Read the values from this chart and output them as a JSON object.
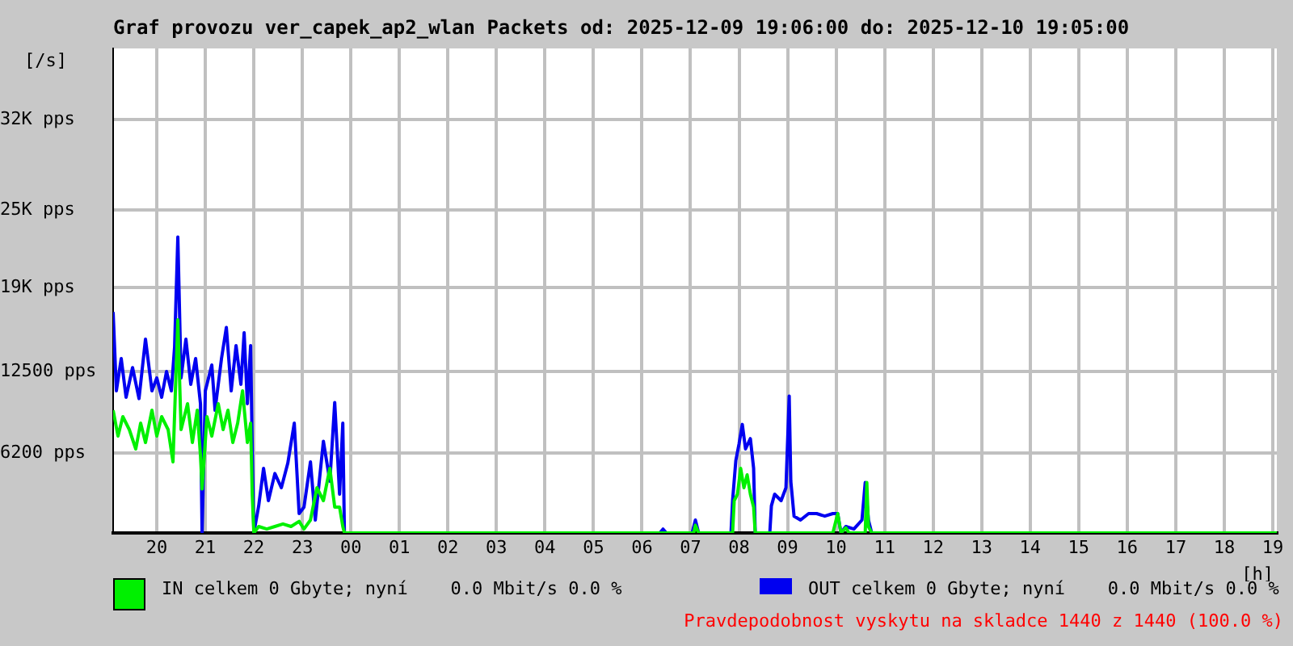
{
  "chart_data": {
    "type": "line",
    "title": "Graf provozu ver_capek_ap2_wlan Packets od: 2025-12-09 19:06:00 do: 2025-12-10 19:05:00",
    "ylabel": "[/s]",
    "xlabel": "[h]",
    "xlim": [
      "2025-12-09T19:06",
      "2025-12-10T19:05"
    ],
    "xticks": [
      {
        "value": "2025-12-09T20:00",
        "label": "20"
      },
      {
        "value": "2025-12-09T21:00",
        "label": "21"
      },
      {
        "value": "2025-12-09T22:00",
        "label": "22"
      },
      {
        "value": "2025-12-09T23:00",
        "label": "23"
      },
      {
        "value": "2025-12-10T00:00",
        "label": "00"
      },
      {
        "value": "2025-12-10T01:00",
        "label": "01"
      },
      {
        "value": "2025-12-10T02:00",
        "label": "02"
      },
      {
        "value": "2025-12-10T03:00",
        "label": "03"
      },
      {
        "value": "2025-12-10T04:00",
        "label": "04"
      },
      {
        "value": "2025-12-10T05:00",
        "label": "05"
      },
      {
        "value": "2025-12-10T06:00",
        "label": "06"
      },
      {
        "value": "2025-12-10T07:00",
        "label": "07"
      },
      {
        "value": "2025-12-10T08:00",
        "label": "08"
      },
      {
        "value": "2025-12-10T09:00",
        "label": "09"
      },
      {
        "value": "2025-12-10T10:00",
        "label": "10"
      },
      {
        "value": "2025-12-10T11:00",
        "label": "11"
      },
      {
        "value": "2025-12-10T12:00",
        "label": "12"
      },
      {
        "value": "2025-12-10T13:00",
        "label": "13"
      },
      {
        "value": "2025-12-10T14:00",
        "label": "14"
      },
      {
        "value": "2025-12-10T15:00",
        "label": "15"
      },
      {
        "value": "2025-12-10T16:00",
        "label": "16"
      },
      {
        "value": "2025-12-10T17:00",
        "label": "17"
      },
      {
        "value": "2025-12-10T18:00",
        "label": "18"
      },
      {
        "value": "2025-12-10T19:00",
        "label": "19"
      }
    ],
    "ylim": [
      0,
      37500
    ],
    "yticks": [
      {
        "value": 6200,
        "label": "6200 pps"
      },
      {
        "value": 12500,
        "label": "12500 pps"
      },
      {
        "value": 19000,
        "label": "19K pps"
      },
      {
        "value": 25000,
        "label": "25K pps"
      },
      {
        "value": 32000,
        "label": "32K pps"
      }
    ],
    "grid": true,
    "legend": "bottom",
    "series": [
      {
        "name": "IN celkem 0 Gbyte; nyní    0.0 Mbit/s 0.0 %",
        "color": "#00f000",
        "x": [
          "2025-12-09T19:06",
          "2025-12-09T19:12",
          "2025-12-09T19:18",
          "2025-12-09T19:26",
          "2025-12-09T19:34",
          "2025-12-09T19:40",
          "2025-12-09T19:46",
          "2025-12-09T19:54",
          "2025-12-09T20:00",
          "2025-12-09T20:06",
          "2025-12-09T20:14",
          "2025-12-09T20:20",
          "2025-12-09T20:26",
          "2025-12-09T20:30",
          "2025-12-09T20:38",
          "2025-12-09T20:44",
          "2025-12-09T20:50",
          "2025-12-09T20:54",
          "2025-12-09T20:56",
          "2025-12-09T21:02",
          "2025-12-09T21:08",
          "2025-12-09T21:16",
          "2025-12-09T21:22",
          "2025-12-09T21:28",
          "2025-12-09T21:34",
          "2025-12-09T21:40",
          "2025-12-09T21:46",
          "2025-12-09T21:52",
          "2025-12-09T21:56",
          "2025-12-09T21:58",
          "2025-12-09T22:00",
          "2025-12-09T22:06",
          "2025-12-09T22:16",
          "2025-12-09T22:26",
          "2025-12-09T22:36",
          "2025-12-09T22:46",
          "2025-12-09T22:56",
          "2025-12-09T23:02",
          "2025-12-09T23:10",
          "2025-12-09T23:18",
          "2025-12-09T23:26",
          "2025-12-09T23:34",
          "2025-12-09T23:40",
          "2025-12-09T23:46",
          "2025-12-09T23:50",
          "2025-12-09T23:52",
          "2025-12-10T07:04",
          "2025-12-10T07:06",
          "2025-12-10T07:10",
          "2025-12-10T07:52",
          "2025-12-10T07:54",
          "2025-12-10T07:58",
          "2025-12-10T08:02",
          "2025-12-10T08:06",
          "2025-12-10T08:10",
          "2025-12-10T08:14",
          "2025-12-10T08:18",
          "2025-12-10T08:20",
          "2025-12-10T09:56",
          "2025-12-10T10:02",
          "2025-12-10T10:06",
          "2025-12-10T10:12",
          "2025-12-10T10:16",
          "2025-12-10T10:36",
          "2025-12-10T10:38",
          "2025-12-10T10:40",
          "2025-12-10T10:44",
          "2025-12-10T19:05"
        ],
        "values": [
          9500,
          7500,
          9000,
          8000,
          6500,
          8500,
          7000,
          9500,
          7500,
          9000,
          8000,
          5500,
          16500,
          8000,
          10000,
          7000,
          9500,
          6000,
          3400,
          9000,
          7500,
          10000,
          8000,
          9500,
          7000,
          8500,
          11000,
          7000,
          8500,
          3000,
          0,
          500,
          300,
          500,
          700,
          500,
          900,
          300,
          1000,
          3500,
          2500,
          5000,
          2000,
          2000,
          500,
          0,
          0,
          600,
          0,
          0,
          2500,
          3000,
          5000,
          3500,
          4500,
          3000,
          2000,
          0,
          0,
          1500,
          0,
          400,
          0,
          0,
          3900,
          500,
          0,
          0
        ]
      },
      {
        "name": "OUT celkem 0 Gbyte; nyní    0.0 Mbit/s 0.0 %",
        "color": "#0000f0",
        "x": [
          "2025-12-09T19:06",
          "2025-12-09T19:10",
          "2025-12-09T19:16",
          "2025-12-09T19:22",
          "2025-12-09T19:30",
          "2025-12-09T19:38",
          "2025-12-09T19:46",
          "2025-12-09T19:54",
          "2025-12-09T20:00",
          "2025-12-09T20:06",
          "2025-12-09T20:12",
          "2025-12-09T20:18",
          "2025-12-09T20:22",
          "2025-12-09T20:26",
          "2025-12-09T20:30",
          "2025-12-09T20:36",
          "2025-12-09T20:42",
          "2025-12-09T20:48",
          "2025-12-09T20:54",
          "2025-12-09T20:56",
          "2025-12-09T21:00",
          "2025-12-09T21:08",
          "2025-12-09T21:12",
          "2025-12-09T21:20",
          "2025-12-09T21:26",
          "2025-12-09T21:32",
          "2025-12-09T21:38",
          "2025-12-09T21:44",
          "2025-12-09T21:48",
          "2025-12-09T21:52",
          "2025-12-09T21:56",
          "2025-12-09T21:58",
          "2025-12-09T22:00",
          "2025-12-09T22:06",
          "2025-12-09T22:12",
          "2025-12-09T22:18",
          "2025-12-09T22:26",
          "2025-12-09T22:34",
          "2025-12-09T22:42",
          "2025-12-09T22:50",
          "2025-12-09T22:56",
          "2025-12-09T23:02",
          "2025-12-09T23:10",
          "2025-12-09T23:16",
          "2025-12-09T23:26",
          "2025-12-09T23:34",
          "2025-12-09T23:40",
          "2025-12-09T23:46",
          "2025-12-09T23:50",
          "2025-12-09T23:52",
          "2025-12-10T06:22",
          "2025-12-10T06:26",
          "2025-12-10T06:30",
          "2025-12-10T07:02",
          "2025-12-10T07:06",
          "2025-12-10T07:10",
          "2025-12-10T07:50",
          "2025-12-10T07:52",
          "2025-12-10T07:56",
          "2025-12-10T08:00",
          "2025-12-10T08:04",
          "2025-12-10T08:08",
          "2025-12-10T08:14",
          "2025-12-10T08:18",
          "2025-12-10T08:20",
          "2025-12-10T08:38",
          "2025-12-10T08:40",
          "2025-12-10T08:44",
          "2025-12-10T08:52",
          "2025-12-10T08:58",
          "2025-12-10T09:02",
          "2025-12-10T09:04",
          "2025-12-10T09:08",
          "2025-12-10T09:16",
          "2025-12-10T09:26",
          "2025-12-10T09:36",
          "2025-12-10T09:46",
          "2025-12-10T09:56",
          "2025-12-10T10:02",
          "2025-12-10T10:06",
          "2025-12-10T10:12",
          "2025-12-10T10:22",
          "2025-12-10T10:32",
          "2025-12-10T10:36",
          "2025-12-10T10:40",
          "2025-12-10T10:44",
          "2025-12-10T19:05"
        ],
        "values": [
          17100,
          11000,
          13500,
          10500,
          12800,
          10400,
          15000,
          11000,
          12000,
          10500,
          12500,
          11000,
          14400,
          22900,
          12000,
          15000,
          11500,
          13500,
          10000,
          0,
          11000,
          13000,
          9500,
          13500,
          15900,
          11000,
          14500,
          11500,
          15500,
          10000,
          14500,
          6600,
          0,
          2100,
          5000,
          2500,
          4600,
          3500,
          5400,
          8500,
          1500,
          2000,
          5500,
          1000,
          7100,
          4000,
          10100,
          3000,
          8500,
          0,
          0,
          300,
          0,
          0,
          1000,
          0,
          0,
          2500,
          5600,
          6900,
          8400,
          6500,
          7300,
          5000,
          0,
          0,
          2100,
          3000,
          2500,
          3500,
          10600,
          4000,
          1300,
          1000,
          1500,
          1500,
          1300,
          1500,
          1500,
          0,
          500,
          300,
          1000,
          3900,
          1000,
          0,
          0
        ]
      }
    ],
    "annotations": [
      "Pravdepodobnost vyskytu na skladce 1440 z 1440 (100.0 %)"
    ]
  }
}
